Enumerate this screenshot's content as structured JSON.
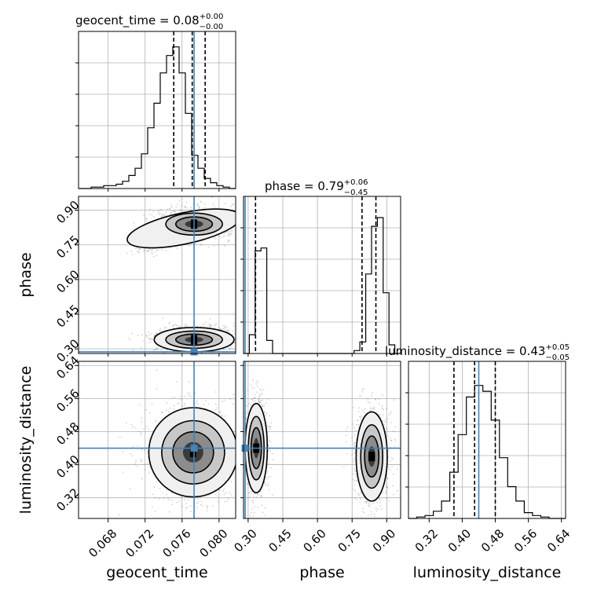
{
  "chart_data": {
    "type": "corner",
    "parameters": [
      {
        "name": "geocent_time",
        "axis_label": "geocent_time",
        "title": {
          "prefix": "geocent_time = 0.08",
          "upper": "+0.00",
          "lower": "−0.00"
        },
        "range": [
          0.0648,
          0.0818
        ],
        "ticks": [
          "0.068",
          "0.072",
          "0.076",
          "0.080"
        ],
        "tick_values": [
          0.068,
          0.072,
          0.076,
          0.08
        ],
        "injection": 0.0773,
        "quantiles": [
          0.0751,
          0.0771,
          0.0785
        ],
        "hist_bins": [
          0.0,
          0.0,
          0.01,
          0.01,
          0.02,
          0.02,
          0.03,
          0.05,
          0.09,
          0.14,
          0.24,
          0.42,
          0.59,
          0.8,
          0.92,
          0.98,
          0.8,
          0.52,
          0.23,
          0.14,
          0.07,
          0.04,
          0.02,
          0.01,
          0.0
        ]
      },
      {
        "name": "phase",
        "axis_label": "phase",
        "title": {
          "prefix": "phase = 0.79",
          "upper": "+0.06",
          "lower": "−0.45"
        },
        "range": [
          0.28,
          0.96
        ],
        "ticks": [
          "0.30",
          "0.45",
          "0.60",
          "0.75",
          "0.90"
        ],
        "tick_values": [
          0.3,
          0.45,
          0.6,
          0.75,
          0.9
        ],
        "injection": 0.287,
        "quantiles": [
          0.332,
          0.793,
          0.853
        ],
        "hist_bins": [
          0.0,
          0.13,
          0.71,
          0.73,
          0.09,
          0.0,
          0.0,
          0.0,
          0.0,
          0.0,
          0.0,
          0.0,
          0.0,
          0.0,
          0.0,
          0.0,
          0.0,
          0.0,
          0.0,
          0.02,
          0.08,
          0.55,
          0.88,
          0.94,
          0.42,
          0.06,
          0.0
        ]
      },
      {
        "name": "luminosity_distance",
        "axis_label": "luminosity_distance",
        "title": {
          "prefix": "luminosity_distance = 0.43",
          "upper": "+0.05",
          "lower": "−0.05"
        },
        "range": [
          0.27,
          0.65
        ],
        "ticks": [
          "0.32",
          "0.40",
          "0.48",
          "0.56",
          "0.64"
        ],
        "tick_values": [
          0.32,
          0.4,
          0.48,
          0.56,
          0.64
        ],
        "injection": 0.44,
        "quantiles": [
          0.38,
          0.43,
          0.48
        ],
        "hist_bins": [
          0.0,
          0.01,
          0.02,
          0.05,
          0.12,
          0.32,
          0.58,
          0.84,
          0.92,
          0.88,
          0.68,
          0.42,
          0.22,
          0.12,
          0.04,
          0.02,
          0.01,
          0.0,
          0.0
        ]
      }
    ],
    "samples_2d": [
      {
        "x": "geocent_time",
        "y": "phase",
        "modes": [
          {
            "cx": 0.0773,
            "cy": 0.84,
            "sx": 0.0018,
            "sy": 0.028
          },
          {
            "cx": 0.0773,
            "cy": 0.34,
            "sx": 0.0018,
            "sy": 0.022
          }
        ]
      },
      {
        "x": "geocent_time",
        "y": "luminosity_distance",
        "modes": [
          {
            "cx": 0.0772,
            "cy": 0.43,
            "sx": 0.002,
            "sy": 0.045
          }
        ]
      },
      {
        "x": "phase",
        "y": "luminosity_distance",
        "modes": [
          {
            "cx": 0.335,
            "cy": 0.44,
            "sx": 0.02,
            "sy": 0.045
          },
          {
            "cx": 0.835,
            "cy": 0.42,
            "sx": 0.028,
            "sy": 0.045
          }
        ]
      }
    ],
    "colors": {
      "truth": "#4682b4",
      "hist": "#000000",
      "grid": "#b0b0b0"
    },
    "grid": true
  }
}
